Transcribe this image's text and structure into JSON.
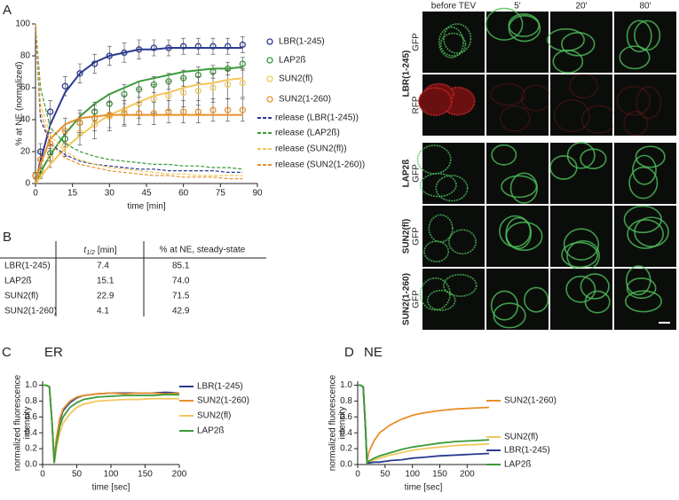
{
  "chart_data": [
    {
      "panel": "A",
      "type": "line",
      "xlabel": "time [min]",
      "ylabel": "% at NE (normalized)",
      "x": [
        0,
        2,
        6,
        12,
        18,
        24,
        30,
        36,
        42,
        48,
        54,
        60,
        66,
        72,
        78,
        84
      ],
      "xlim": [
        0,
        90
      ],
      "xticks": [
        0,
        15,
        30,
        45,
        60,
        75,
        90
      ],
      "ylim": [
        0,
        100
      ],
      "yticks": [
        0,
        20,
        40,
        60,
        80,
        100
      ],
      "series": [
        {
          "name": "LBR(1-245)",
          "color": "#2b3a8f",
          "marker": "circle",
          "values": [
            5,
            20,
            45,
            61,
            69,
            75,
            80,
            82,
            84,
            85,
            85,
            86,
            86,
            86,
            86,
            87
          ],
          "errors": [
            2,
            5,
            7,
            6,
            6,
            6,
            6,
            6,
            6,
            5,
            5,
            5,
            5,
            5,
            5,
            5
          ],
          "fit": [
            0,
            14,
            37,
            57,
            69,
            76,
            80,
            82,
            84,
            84,
            85,
            85,
            85,
            85,
            85,
            85
          ]
        },
        {
          "name": "LAP2ß",
          "color": "#3a9a3a",
          "marker": "circle",
          "values": [
            5,
            8,
            19,
            28,
            38,
            45,
            50,
            56,
            59,
            62,
            64,
            66,
            68,
            70,
            72,
            75
          ],
          "errors": [
            2,
            4,
            5,
            5,
            6,
            6,
            6,
            6,
            5,
            5,
            5,
            5,
            5,
            4,
            4,
            4
          ],
          "fit": [
            0,
            7,
            18,
            31,
            42,
            50,
            56,
            60,
            64,
            66,
            68,
            70,
            71,
            72,
            72,
            73
          ]
        },
        {
          "name": "SUN2(fl)",
          "color": "#f2c75c",
          "marker": "circle",
          "values": [
            5,
            7,
            16,
            24,
            32,
            37,
            42,
            46,
            50,
            53,
            55,
            57,
            58,
            60,
            62,
            63
          ],
          "errors": [
            2,
            4,
            6,
            7,
            8,
            9,
            9,
            9,
            9,
            9,
            9,
            9,
            9,
            9,
            9,
            9
          ],
          "fit": [
            0,
            4,
            12,
            22,
            30,
            37,
            43,
            47,
            51,
            55,
            57,
            60,
            62,
            63,
            65,
            66
          ]
        },
        {
          "name": "SUN2(1-260)",
          "color": "#e8902a",
          "marker": "circle",
          "values": [
            5,
            15,
            25,
            33,
            38,
            41,
            43,
            44,
            44,
            44,
            45,
            45,
            45,
            46,
            46,
            46
          ],
          "errors": [
            2,
            5,
            7,
            8,
            8,
            8,
            8,
            8,
            7,
            7,
            7,
            7,
            7,
            7,
            7,
            7
          ],
          "fit": [
            0,
            12,
            28,
            37,
            41,
            42,
            43,
            43,
            43,
            43,
            43,
            43,
            43,
            43,
            43,
            43
          ]
        },
        {
          "name": "release (LBR(1-245))",
          "color": "#2b3a8f",
          "dashed": true,
          "values": [
            100,
            40,
            25,
            18,
            14,
            12,
            11,
            10,
            9,
            9,
            8,
            8,
            8,
            8,
            7,
            7
          ]
        },
        {
          "name": "release (LAP2ß)",
          "color": "#3a9a3a",
          "dashed": true,
          "values": [
            100,
            60,
            35,
            25,
            20,
            17,
            15,
            14,
            13,
            12,
            12,
            11,
            11,
            10,
            10,
            9
          ]
        },
        {
          "name": "release (SUN2(fl))",
          "color": "#f2c75c",
          "dashed": true,
          "values": [
            100,
            50,
            30,
            20,
            15,
            12,
            10,
            9,
            8,
            7,
            6,
            6,
            5,
            5,
            5,
            5
          ]
        },
        {
          "name": "release (SUN2(1-260))",
          "color": "#e8902a",
          "dashed": true,
          "values": [
            100,
            45,
            25,
            16,
            12,
            10,
            8,
            7,
            6,
            5,
            5,
            4,
            4,
            4,
            3,
            3
          ]
        }
      ]
    },
    {
      "panel": "C",
      "title": "ER",
      "type": "line",
      "xlabel": "time [sec]",
      "ylabel": [
        "normalized fluorescence",
        "intensity"
      ],
      "x": [
        0,
        5,
        10,
        14,
        17,
        20,
        25,
        30,
        40,
        50,
        60,
        80,
        100,
        120,
        140,
        160,
        180,
        200
      ],
      "xlim": [
        0,
        200
      ],
      "xticks": [
        0,
        50,
        100,
        150,
        200
      ],
      "ylim": [
        0,
        1.05
      ],
      "yticks": [
        {
          "value": 0,
          "label": "0.0"
        },
        {
          "value": 0.2,
          "label": "0.2"
        },
        {
          "value": 0.4,
          "label": "0.4"
        },
        {
          "value": 0.6,
          "label": "0.6"
        },
        {
          "value": 0.8,
          "label": "0.8"
        },
        {
          "value": 1,
          "label": "1.0"
        }
      ],
      "series": [
        {
          "name": "LBR(1-245)",
          "color": "#2b3a8f",
          "values": [
            1,
            1,
            0.98,
            0.5,
            0.02,
            0.3,
            0.55,
            0.68,
            0.78,
            0.84,
            0.87,
            0.89,
            0.9,
            0.9,
            0.9,
            0.9,
            0.91,
            0.9
          ]
        },
        {
          "name": "SUN2(1-260)",
          "color": "#e8902a",
          "values": [
            1,
            1,
            0.98,
            0.5,
            0.02,
            0.32,
            0.58,
            0.7,
            0.8,
            0.85,
            0.87,
            0.89,
            0.9,
            0.89,
            0.9,
            0.9,
            0.89,
            0.9
          ]
        },
        {
          "name": "SUN2(fl)",
          "color": "#f2c75c",
          "values": [
            1,
            1,
            0.98,
            0.5,
            0.02,
            0.2,
            0.4,
            0.52,
            0.64,
            0.72,
            0.76,
            0.8,
            0.81,
            0.82,
            0.82,
            0.83,
            0.83,
            0.83
          ]
        },
        {
          "name": "LAP2ß",
          "color": "#3a9a3a",
          "values": [
            1,
            1,
            0.98,
            0.5,
            0.02,
            0.25,
            0.48,
            0.6,
            0.72,
            0.78,
            0.82,
            0.85,
            0.86,
            0.87,
            0.87,
            0.87,
            0.88,
            0.88
          ]
        }
      ]
    },
    {
      "panel": "D",
      "title": "NE",
      "type": "line",
      "xlabel": "time [sec]",
      "ylabel": [
        "normalized fluorescence",
        "intensity"
      ],
      "x": [
        0,
        5,
        10,
        14,
        17,
        20,
        30,
        40,
        60,
        80,
        100,
        120,
        150,
        180,
        210,
        240
      ],
      "xlim": [
        0,
        240
      ],
      "xticks": [
        0,
        50,
        100,
        150,
        200
      ],
      "ylim": [
        0,
        1.05
      ],
      "yticks": [
        {
          "value": 0,
          "label": "0.0"
        },
        {
          "value": 0.2,
          "label": "0.2"
        },
        {
          "value": 0.4,
          "label": "0.4"
        },
        {
          "value": 0.6,
          "label": "0.6"
        },
        {
          "value": 0.8,
          "label": "0.8"
        },
        {
          "value": 1,
          "label": "1.0"
        }
      ],
      "series": [
        {
          "name": "SUN2(1-260)",
          "color": "#e8902a",
          "values": [
            1,
            1,
            0.98,
            0.5,
            0.02,
            0.15,
            0.3,
            0.4,
            0.5,
            0.57,
            0.62,
            0.65,
            0.68,
            0.7,
            0.71,
            0.72
          ]
        },
        {
          "name": "SUN2(fl)",
          "color": "#f2c75c",
          "values": [
            1,
            1,
            0.98,
            0.5,
            0.02,
            0.03,
            0.06,
            0.08,
            0.12,
            0.15,
            0.18,
            0.2,
            0.22,
            0.24,
            0.25,
            0.26
          ]
        },
        {
          "name": "LBR(1-245)",
          "color": "#2b3a8f",
          "values": [
            1,
            1,
            0.98,
            0.5,
            0.02,
            0.02,
            0.03,
            0.03,
            0.05,
            0.06,
            0.08,
            0.09,
            0.11,
            0.12,
            0.13,
            0.14
          ]
        },
        {
          "name": "LAP2ß",
          "color": "#3a9a3a",
          "values": [
            1,
            1,
            0.98,
            0.5,
            0.02,
            0.04,
            0.08,
            0.11,
            0.15,
            0.19,
            0.22,
            0.24,
            0.27,
            0.29,
            0.3,
            0.31
          ]
        }
      ]
    }
  ],
  "table": {
    "panel": "B",
    "header": [
      {
        "symbol": "t",
        "subscript": "1/2",
        "unit": "[min]"
      },
      "% at NE, steady-state"
    ],
    "rows": [
      [
        "LBR(1-245)",
        "7.4",
        "85.1"
      ],
      [
        "LAP2ß",
        "15.1",
        "74.0"
      ],
      [
        "SUN2(fl)",
        "22.9",
        "71.5"
      ],
      [
        "SUN2(1-260)",
        "4.1",
        "42.9"
      ]
    ]
  },
  "micrographs": {
    "columns": [
      "before TEV",
      "5'",
      "20'",
      "80'"
    ],
    "groups": [
      {
        "label": "LBR(1-245)",
        "channels": [
          "GFP",
          "RFP"
        ]
      },
      {
        "label": "LAP2ß",
        "channels": [
          "GFP"
        ]
      },
      {
        "label": "SUN2(fl)",
        "channels": [
          "GFP"
        ]
      },
      {
        "label": "SUN2(1-260)",
        "channels": [
          "GFP"
        ]
      }
    ]
  }
}
